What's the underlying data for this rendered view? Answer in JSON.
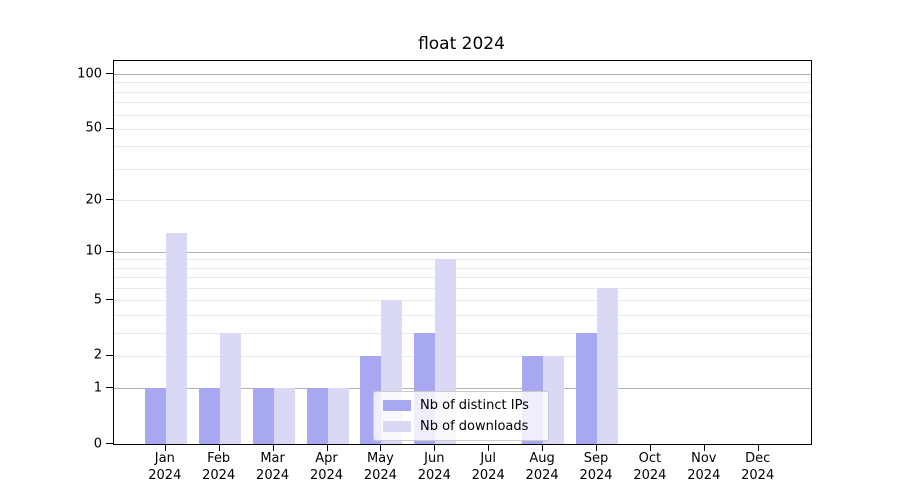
{
  "title": "float 2024",
  "legend": {
    "items": [
      {
        "label": "Nb of distinct IPs",
        "color": "#a8a8f2"
      },
      {
        "label": "Nb of downloads",
        "color": "#d9d9f6"
      }
    ]
  },
  "chart_data": {
    "type": "bar",
    "title": "float 2024",
    "categories": [
      "Jan",
      "Feb",
      "Mar",
      "Apr",
      "May",
      "Jun",
      "Jul",
      "Aug",
      "Sep",
      "Oct",
      "Nov",
      "Dec"
    ],
    "category_year": "2024",
    "series": [
      {
        "name": "Nb of distinct IPs",
        "color": "#a8a8f2",
        "values": [
          1,
          1,
          1,
          1,
          2,
          3,
          0,
          2,
          3,
          0,
          0,
          0
        ]
      },
      {
        "name": "Nb of downloads",
        "color": "#d9d9f6",
        "values": [
          13,
          3,
          1,
          1,
          5,
          9,
          0,
          2,
          6,
          0,
          0,
          0
        ]
      }
    ],
    "xlabel": "",
    "ylabel": "",
    "y_scale": "log1p",
    "ylim": [
      0,
      118
    ],
    "y_tick_values": [
      0,
      1,
      2,
      5,
      10,
      20,
      50,
      100
    ],
    "y_tick_labels": [
      "0",
      "1",
      "2",
      "5",
      "10",
      "20",
      "50",
      "100"
    ],
    "y_major_gridlines": [
      1,
      10,
      100
    ],
    "y_minor_gridlines": [
      2,
      3,
      4,
      5,
      6,
      7,
      8,
      9,
      20,
      30,
      40,
      50,
      60,
      70,
      80,
      90
    ],
    "grid": true,
    "legend_position": "lower center",
    "colors": {
      "major_grid": "#b1b1b1",
      "minor_grid": "#e9e9e9",
      "spine": "#000000",
      "text": "#000000"
    }
  }
}
